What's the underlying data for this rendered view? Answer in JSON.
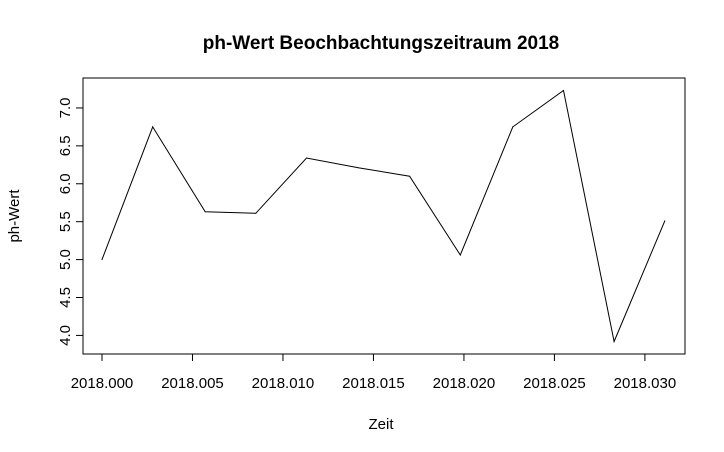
{
  "chart_data": {
    "type": "line",
    "title": "ph-Wert Beochbachtungszeitraum 2018",
    "xlabel": "Zeit",
    "ylabel": "ph-Wert",
    "xlim": [
      2018.0,
      2018.031
    ],
    "ylim": [
      3.9,
      7.25
    ],
    "xticks": [
      2018.0,
      2018.005,
      2018.01,
      2018.015,
      2018.02,
      2018.025,
      2018.03
    ],
    "xtick_labels": [
      "2018.000",
      "2018.005",
      "2018.010",
      "2018.015",
      "2018.020",
      "2018.025",
      "2018.030"
    ],
    "yticks": [
      4.0,
      4.5,
      5.0,
      5.5,
      6.0,
      6.5,
      7.0
    ],
    "ytick_labels": [
      "4.0",
      "4.5",
      "5.0",
      "5.5",
      "6.0",
      "6.5",
      "7.0"
    ],
    "grid": false,
    "series": [
      {
        "x": [
          2018.0,
          2018.0028,
          2018.0057,
          2018.0085,
          2018.0113,
          2018.0142,
          2018.017,
          2018.0198,
          2018.0227,
          2018.0255,
          2018.0283,
          2018.0311
        ],
        "y": [
          5.0,
          6.75,
          5.63,
          5.61,
          6.34,
          6.21,
          6.1,
          5.06,
          6.75,
          7.23,
          3.92,
          5.51
        ]
      }
    ],
    "colors": {
      "line": "#000000",
      "axis": "#000000"
    }
  }
}
